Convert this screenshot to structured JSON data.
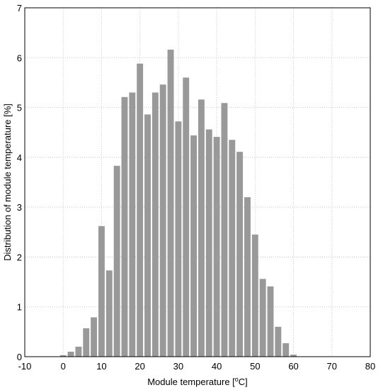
{
  "chart_data": {
    "type": "bar",
    "xlabel_prefix": "Module temperature [",
    "xlabel_sup": "o",
    "xlabel_suffix": "C]",
    "ylabel": "Distribution of module temperature [%]",
    "xlim": [
      -10,
      80
    ],
    "ylim": [
      0,
      7
    ],
    "xticks": [
      -10,
      0,
      10,
      20,
      30,
      40,
      50,
      60,
      70,
      80
    ],
    "yticks": [
      0,
      1,
      2,
      3,
      4,
      5,
      6,
      7
    ],
    "grid": true,
    "bar_color": "#999999",
    "bin_width": 2,
    "x": [
      0,
      2,
      4,
      6,
      8,
      10,
      12,
      14,
      16,
      18,
      20,
      22,
      24,
      26,
      28,
      30,
      32,
      34,
      36,
      38,
      40,
      42,
      44,
      46,
      48,
      50,
      52,
      54,
      56,
      58,
      60
    ],
    "values": [
      0.03,
      0.1,
      0.2,
      0.57,
      0.79,
      2.62,
      1.73,
      3.83,
      5.21,
      5.3,
      5.88,
      4.86,
      5.3,
      5.46,
      6.16,
      4.72,
      5.6,
      4.44,
      5.16,
      4.56,
      4.41,
      5.09,
      4.35,
      4.11,
      3.2,
      2.45,
      1.56,
      1.41,
      0.6,
      0.27,
      0.04
    ]
  }
}
